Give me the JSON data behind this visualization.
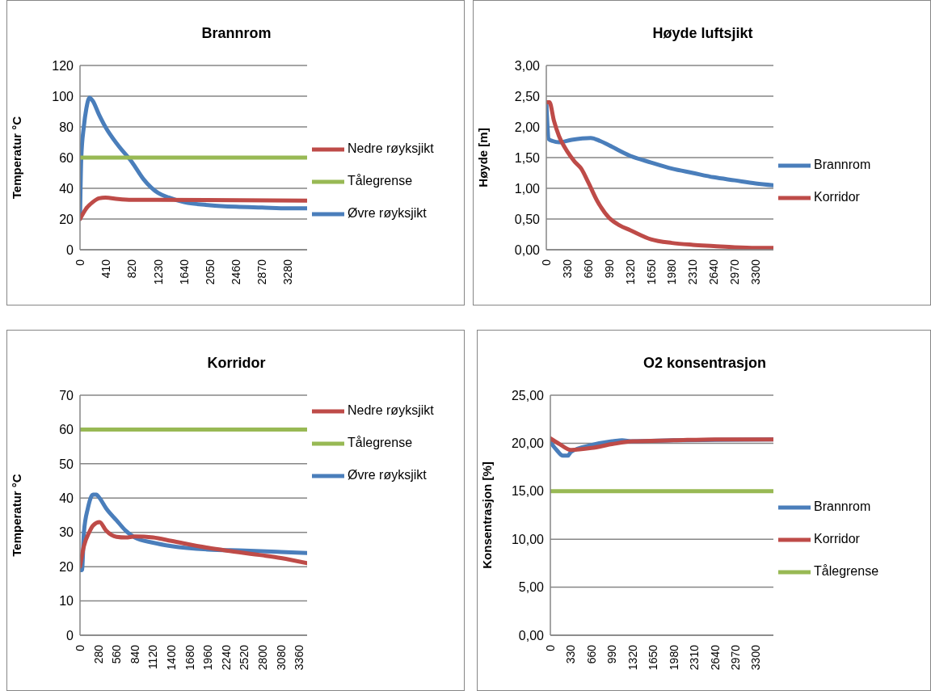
{
  "chart_data": [
    {
      "type": "line",
      "title": "Brannrom",
      "ylabel": "Temperatur °C",
      "xlim": [
        0,
        3580
      ],
      "xticks": [
        0,
        410,
        820,
        1230,
        1640,
        2050,
        2460,
        2870,
        3280
      ],
      "ylim": [
        0,
        120
      ],
      "yticks": [
        0,
        20,
        40,
        60,
        80,
        100,
        120
      ],
      "grid": "y",
      "legend": "right",
      "marker": "none",
      "line_style": "solid",
      "series": [
        {
          "name": "Øvre røyksjikt",
          "color": "#4a7ebb",
          "x": [
            0,
            20,
            60,
            100,
            150,
            200,
            300,
            400,
            600,
            820,
            1000,
            1230,
            1400,
            1640,
            2050,
            2460,
            2870,
            3280,
            3580
          ],
          "values": [
            20,
            60,
            80,
            92,
            99,
            97,
            88,
            80,
            68,
            57,
            46,
            37,
            34,
            31,
            29,
            28,
            27.5,
            27,
            27
          ]
        },
        {
          "name": "Nedre røyksjikt",
          "color": "#be4b48",
          "x": [
            0,
            100,
            200,
            300,
            400,
            600,
            820,
            1230,
            3580
          ],
          "values": [
            20,
            27,
            31,
            33.5,
            34,
            33,
            32.5,
            32.5,
            32
          ]
        },
        {
          "name": "Tålegrense",
          "color": "#98b954",
          "x": [
            0,
            3580
          ],
          "values": [
            60,
            60
          ]
        }
      ]
    },
    {
      "type": "line",
      "title": "Høyde luftsjikt",
      "ylabel": "Høyde [m]",
      "xlim": [
        0,
        3580
      ],
      "xticks": [
        0,
        330,
        660,
        990,
        1320,
        1650,
        1980,
        2310,
        2640,
        2970,
        3300
      ],
      "ylim": [
        0,
        3
      ],
      "yticks": [
        {
          "value": 0,
          "label": "0,00"
        },
        {
          "value": 0.5,
          "label": "0,50"
        },
        {
          "value": 1,
          "label": "1,00"
        },
        {
          "value": 1.5,
          "label": "1,50"
        },
        {
          "value": 2,
          "label": "2,00"
        },
        {
          "value": 2.5,
          "label": "2,50"
        },
        {
          "value": 3,
          "label": "3,00"
        }
      ],
      "grid": "y",
      "legend": "right",
      "marker": "none",
      "line_style": "solid",
      "series": [
        {
          "name": "Brannrom",
          "color": "#4a7ebb",
          "x": [
            0,
            40,
            100,
            200,
            400,
            700,
            850,
            990,
            1320,
            1650,
            1980,
            2310,
            2640,
            2970,
            3300,
            3580
          ],
          "values": [
            2.4,
            1.8,
            1.77,
            1.75,
            1.79,
            1.82,
            1.77,
            1.7,
            1.53,
            1.42,
            1.32,
            1.25,
            1.18,
            1.13,
            1.08,
            1.05
          ]
        },
        {
          "name": "Korridor",
          "color": "#be4b48",
          "x": [
            0,
            50,
            120,
            200,
            330,
            450,
            550,
            660,
            800,
            990,
            1150,
            1320,
            1650,
            1980,
            2310,
            2640,
            2970,
            3300,
            3580
          ],
          "values": [
            2.4,
            2.4,
            2.1,
            1.85,
            1.6,
            1.43,
            1.32,
            1.1,
            0.8,
            0.52,
            0.4,
            0.32,
            0.17,
            0.11,
            0.08,
            0.06,
            0.04,
            0.03,
            0.03
          ]
        }
      ]
    },
    {
      "type": "line",
      "title": "Korridor",
      "ylabel": "Temperatur °C",
      "xlim": [
        0,
        3480
      ],
      "xticks": [
        0,
        280,
        560,
        840,
        1120,
        1400,
        1680,
        1960,
        2240,
        2520,
        2800,
        3080,
        3360
      ],
      "ylim": [
        0,
        70
      ],
      "yticks": [
        0,
        10,
        20,
        30,
        40,
        50,
        60,
        70
      ],
      "grid": "y",
      "legend": "top right",
      "marker": "none",
      "line_style": "solid",
      "series": [
        {
          "name": "Øvre røyksjikt",
          "color": "#4a7ebb",
          "x": [
            0,
            30,
            60,
            120,
            200,
            250,
            300,
            400,
            560,
            700,
            840,
            1120,
            1400,
            1960,
            2520,
            3080,
            3480
          ],
          "values": [
            19,
            19,
            30,
            37,
            41,
            41,
            40,
            37,
            33.5,
            30.5,
            28.5,
            27,
            26,
            25,
            24.7,
            24.3,
            24
          ]
        },
        {
          "name": "Nedre røyksjikt",
          "color": "#be4b48",
          "x": [
            0,
            60,
            140,
            200,
            300,
            400,
            560,
            700,
            840,
            1120,
            1400,
            1960,
            2240,
            2800,
            3080,
            3480
          ],
          "values": [
            20,
            26,
            30,
            32,
            33,
            30.5,
            28.7,
            28.5,
            28.8,
            28.5,
            27.5,
            25.5,
            24.7,
            23.3,
            22.5,
            21
          ]
        },
        {
          "name": "Tålegrense",
          "color": "#98b954",
          "x": [
            0,
            3480
          ],
          "values": [
            60,
            60
          ]
        }
      ]
    },
    {
      "type": "line",
      "title": "O2 konsentrasjon",
      "ylabel": "Konsentrasjon [%]",
      "xlim": [
        0,
        3580
      ],
      "xticks": [
        0,
        330,
        660,
        990,
        1320,
        1650,
        1980,
        2310,
        2640,
        2970,
        3300
      ],
      "ylim": [
        0,
        25
      ],
      "yticks": [
        {
          "value": 0,
          "label": "0,00"
        },
        {
          "value": 5,
          "label": "5,00"
        },
        {
          "value": 10,
          "label": "10,00"
        },
        {
          "value": 15,
          "label": "15,00"
        },
        {
          "value": 20,
          "label": "20,00"
        },
        {
          "value": 25,
          "label": "25,00"
        }
      ],
      "grid": "y",
      "legend": "right",
      "marker": "none",
      "line_style": "solid",
      "series": [
        {
          "name": "Brannrom",
          "color": "#4a7ebb",
          "x": [
            0,
            100,
            200,
            280,
            330,
            660,
            990,
            1150,
            1320,
            1980,
            3580
          ],
          "values": [
            20.1,
            19.3,
            18.7,
            18.7,
            19.1,
            19.8,
            20.2,
            20.3,
            20.2,
            20.3,
            20.4
          ]
        },
        {
          "name": "Korridor",
          "color": "#be4b48",
          "x": [
            0,
            150,
            330,
            660,
            990,
            1320,
            1980,
            2640,
            3580
          ],
          "values": [
            20.5,
            19.9,
            19.3,
            19.5,
            19.9,
            20.2,
            20.3,
            20.4,
            20.4
          ]
        },
        {
          "name": "Tålegrense",
          "color": "#98b954",
          "x": [
            0,
            3580
          ],
          "values": [
            15,
            15
          ]
        }
      ]
    }
  ]
}
